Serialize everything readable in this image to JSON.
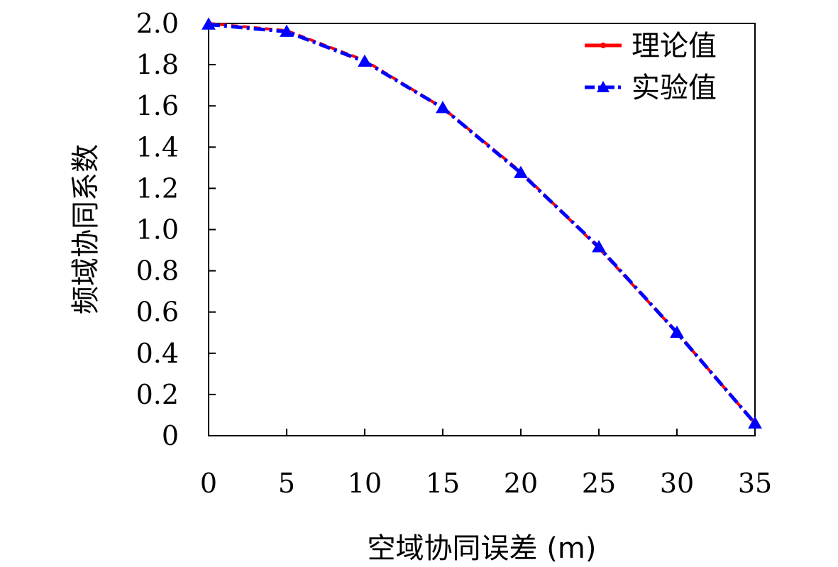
{
  "chart_data": {
    "type": "line",
    "xlabel": "空域协同误差 (m)",
    "ylabel": "频域协同系数",
    "xlim": [
      0,
      35
    ],
    "ylim": [
      0,
      2.0
    ],
    "x_ticks": [
      "0",
      "5",
      "10",
      "15",
      "20",
      "25",
      "30",
      "35"
    ],
    "y_ticks": [
      "0",
      "0.2",
      "0.4",
      "0.6",
      "0.8",
      "1.0",
      "1.2",
      "1.4",
      "1.6",
      "1.8",
      "2.0"
    ],
    "grid": false,
    "legend_position": "top-right",
    "x": [
      0,
      5,
      10,
      15,
      20,
      25,
      30,
      35
    ],
    "series": [
      {
        "name": "理论值",
        "color": "#ff0000",
        "line_style": "dashed",
        "marker": "dot",
        "values": [
          2.0,
          1.965,
          1.82,
          1.59,
          1.28,
          0.91,
          0.5,
          0.06
        ]
      },
      {
        "name": "实验值",
        "color": "#0000ff",
        "line_style": "dashdot",
        "marker": "triangle",
        "values": [
          1.995,
          1.96,
          1.815,
          1.59,
          1.275,
          0.915,
          0.5,
          0.06
        ]
      }
    ]
  }
}
